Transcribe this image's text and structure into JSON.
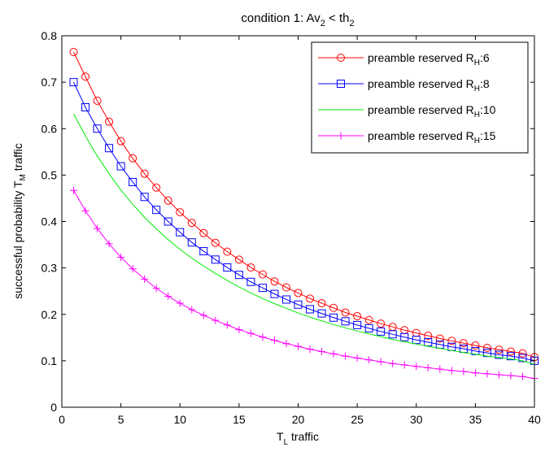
{
  "chart_data": {
    "type": "line",
    "title": {
      "prefix": "condition 1: Av",
      "sub1": "2",
      "middle": " < th",
      "sub2": "2"
    },
    "xlabel": {
      "main": "T",
      "sub": "L",
      "rest": " traffic"
    },
    "ylabel": {
      "main": "successful probability T",
      "sub": "M",
      "rest": " traffic"
    },
    "xlim": [
      0,
      40
    ],
    "ylim": [
      0,
      0.8
    ],
    "xticks": [
      "0",
      "5",
      "10",
      "15",
      "20",
      "25",
      "30",
      "35",
      "40"
    ],
    "yticks": [
      "0",
      "0.1",
      "0.2",
      "0.3",
      "0.4",
      "0.5",
      "0.6",
      "0.7",
      "0.8"
    ],
    "grid": false,
    "legend_position": "top-right",
    "x": [
      1,
      2,
      3,
      4,
      5,
      6,
      7,
      8,
      9,
      10,
      11,
      12,
      13,
      14,
      15,
      16,
      17,
      18,
      19,
      20,
      21,
      22,
      23,
      24,
      25,
      26,
      27,
      28,
      29,
      30,
      31,
      32,
      33,
      34,
      35,
      36,
      37,
      38,
      39,
      40
    ],
    "series": [
      {
        "name_main": "preamble reserved R",
        "name_sub": "H",
        "name_suffix": ":6",
        "color": "#ff0000",
        "marker": "circle",
        "values": [
          0.765,
          0.712,
          0.66,
          0.615,
          0.573,
          0.536,
          0.503,
          0.473,
          0.445,
          0.42,
          0.397,
          0.375,
          0.354,
          0.335,
          0.318,
          0.301,
          0.286,
          0.271,
          0.258,
          0.246,
          0.234,
          0.224,
          0.214,
          0.204,
          0.196,
          0.188,
          0.18,
          0.173,
          0.166,
          0.16,
          0.154,
          0.148,
          0.143,
          0.138,
          0.133,
          0.128,
          0.124,
          0.12,
          0.116,
          0.108
        ]
      },
      {
        "name_main": "preamble reserved R",
        "name_sub": "H",
        "name_suffix": ":8",
        "color": "#0000ff",
        "marker": "square",
        "values": [
          0.7,
          0.646,
          0.6,
          0.558,
          0.519,
          0.485,
          0.453,
          0.425,
          0.4,
          0.377,
          0.355,
          0.336,
          0.318,
          0.301,
          0.285,
          0.27,
          0.257,
          0.244,
          0.232,
          0.221,
          0.211,
          0.202,
          0.193,
          0.185,
          0.177,
          0.17,
          0.163,
          0.157,
          0.151,
          0.145,
          0.14,
          0.135,
          0.13,
          0.126,
          0.121,
          0.117,
          0.113,
          0.11,
          0.106,
          0.1
        ]
      },
      {
        "name_main": "preamble reserved R",
        "name_sub": "H",
        "name_suffix": ":10",
        "color": "#00ee00",
        "marker": "none",
        "values": [
          0.632,
          0.584,
          0.541,
          0.503,
          0.468,
          0.437,
          0.409,
          0.384,
          0.361,
          0.34,
          0.321,
          0.304,
          0.288,
          0.273,
          0.259,
          0.246,
          0.234,
          0.223,
          0.213,
          0.203,
          0.194,
          0.186,
          0.178,
          0.171,
          0.164,
          0.158,
          0.152,
          0.146,
          0.141,
          0.136,
          0.131,
          0.127,
          0.122,
          0.118,
          0.114,
          0.11,
          0.107,
          0.104,
          0.1,
          0.092
        ]
      },
      {
        "name_main": "preamble reserved R",
        "name_sub": "H",
        "name_suffix": ":15",
        "color": "#ff00ff",
        "marker": "plus",
        "values": [
          0.467,
          0.423,
          0.385,
          0.352,
          0.323,
          0.298,
          0.276,
          0.256,
          0.239,
          0.224,
          0.21,
          0.198,
          0.187,
          0.177,
          0.167,
          0.159,
          0.151,
          0.144,
          0.137,
          0.131,
          0.125,
          0.12,
          0.115,
          0.11,
          0.106,
          0.102,
          0.098,
          0.094,
          0.091,
          0.088,
          0.085,
          0.082,
          0.079,
          0.077,
          0.074,
          0.072,
          0.07,
          0.068,
          0.066,
          0.062
        ]
      }
    ]
  }
}
